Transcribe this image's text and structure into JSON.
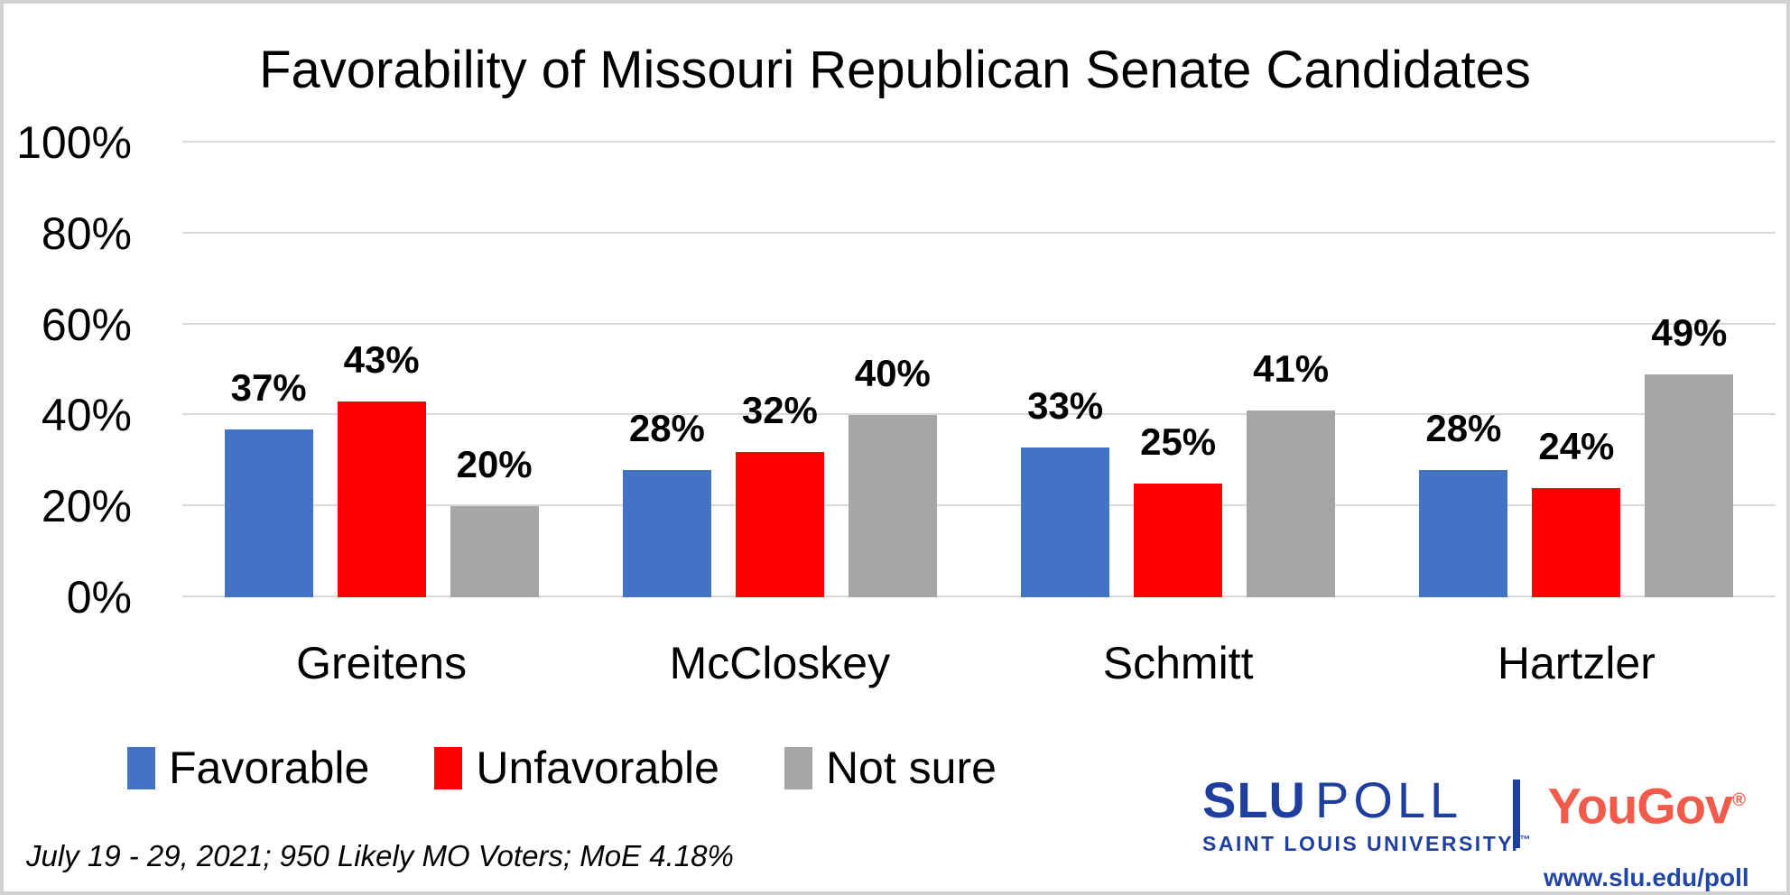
{
  "chart_data": {
    "type": "bar",
    "title": "Favorability of Missouri Republican Senate Candidates",
    "categories": [
      "Greitens",
      "McCloskey",
      "Schmitt",
      "Hartzler"
    ],
    "series": [
      {
        "name": "Favorable",
        "color": "#4472C4",
        "values": [
          37,
          28,
          33,
          28
        ]
      },
      {
        "name": "Unfavorable",
        "color": "#FF0000",
        "values": [
          43,
          32,
          25,
          24
        ]
      },
      {
        "name": "Not sure",
        "color": "#A6A6A6",
        "values": [
          20,
          40,
          41,
          49
        ]
      }
    ],
    "xlabel": "",
    "ylabel": "",
    "ylim": [
      0,
      100
    ],
    "y_ticks": [
      "0%",
      "20%",
      "40%",
      "60%",
      "80%",
      "100%"
    ],
    "grid": true,
    "gridline_color": "#D9D9D9",
    "legend_position": "bottom",
    "data_label_suffix": "%"
  },
  "footnote": {
    "text": "July 19 - 29, 2021; 950 Likely MO Voters; MoE 4.18%"
  },
  "branding": {
    "slu_word": "SLU",
    "poll_word": "POLL",
    "slu_subtitle": "SAINT LOUIS UNIVERSITY.",
    "slu_trademark": "™",
    "yougov": "YouGov",
    "yougov_reg": "®",
    "url": "www.slu.edu/poll",
    "slu_blue": "#1F3F9E",
    "yougov_coral": "#F15B4B"
  }
}
